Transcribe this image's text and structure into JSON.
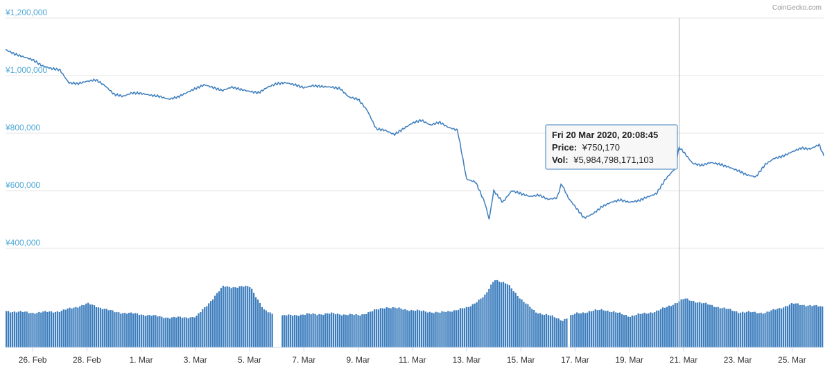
{
  "credit": "CoinGecko.com",
  "chart_data": {
    "type": "line",
    "title": "",
    "xlabel": "",
    "ylabel": "",
    "ylim": [
      400000,
      1200000
    ],
    "y_ticks": [
      "¥1,200,000",
      "¥1,000,000",
      "¥800,000",
      "¥600,000",
      "¥400,000"
    ],
    "y_tick_values": [
      1200000,
      1000000,
      800000,
      600000,
      400000
    ],
    "x_ticks": [
      "26. Feb",
      "28. Feb",
      "1. Mar",
      "3. Mar",
      "5. Mar",
      "7. Mar",
      "9. Mar",
      "11. Mar",
      "13. Mar",
      "15. Mar",
      "17. Mar",
      "19. Mar",
      "21. Mar",
      "23. Mar",
      "25. Mar"
    ],
    "x_range_days": [
      "2020-02-25 00:00",
      "2020-03-26 04:00"
    ],
    "line_color": "#3c7dbd",
    "bar_color": "#3c7dbd",
    "series": [
      {
        "name": "Price",
        "points": [
          [
            "2020-02-25 00:00",
            1090000
          ],
          [
            "2020-02-25 08:00",
            1075000
          ],
          [
            "2020-02-25 16:00",
            1065000
          ],
          [
            "2020-02-26 00:00",
            1055000
          ],
          [
            "2020-02-26 08:00",
            1035000
          ],
          [
            "2020-02-26 16:00",
            1025000
          ],
          [
            "2020-02-27 00:00",
            1020000
          ],
          [
            "2020-02-27 08:00",
            975000
          ],
          [
            "2020-02-27 16:00",
            972000
          ],
          [
            "2020-02-28 00:00",
            980000
          ],
          [
            "2020-02-28 08:00",
            985000
          ],
          [
            "2020-02-28 16:00",
            965000
          ],
          [
            "2020-02-29 00:00",
            935000
          ],
          [
            "2020-02-29 08:00",
            928000
          ],
          [
            "2020-02-29 16:00",
            940000
          ],
          [
            "2020-03-01 00:00",
            938000
          ],
          [
            "2020-03-01 08:00",
            932000
          ],
          [
            "2020-03-01 16:00",
            928000
          ],
          [
            "2020-03-02 00:00",
            918000
          ],
          [
            "2020-03-02 08:00",
            925000
          ],
          [
            "2020-03-02 16:00",
            940000
          ],
          [
            "2020-03-03 00:00",
            955000
          ],
          [
            "2020-03-03 08:00",
            968000
          ],
          [
            "2020-03-03 16:00",
            958000
          ],
          [
            "2020-03-04 00:00",
            948000
          ],
          [
            "2020-03-04 08:00",
            960000
          ],
          [
            "2020-03-04 16:00",
            952000
          ],
          [
            "2020-03-05 00:00",
            945000
          ],
          [
            "2020-03-05 08:00",
            940000
          ],
          [
            "2020-03-05 16:00",
            960000
          ],
          [
            "2020-03-06 00:00",
            972000
          ],
          [
            "2020-03-06 08:00",
            975000
          ],
          [
            "2020-03-06 16:00",
            968000
          ],
          [
            "2020-03-07 00:00",
            958000
          ],
          [
            "2020-03-07 08:00",
            965000
          ],
          [
            "2020-03-07 16:00",
            962000
          ],
          [
            "2020-03-08 00:00",
            960000
          ],
          [
            "2020-03-08 08:00",
            955000
          ],
          [
            "2020-03-08 16:00",
            925000
          ],
          [
            "2020-03-09 00:00",
            918000
          ],
          [
            "2020-03-09 08:00",
            880000
          ],
          [
            "2020-03-09 16:00",
            815000
          ],
          [
            "2020-03-10 00:00",
            810000
          ],
          [
            "2020-03-10 08:00",
            795000
          ],
          [
            "2020-03-10 16:00",
            815000
          ],
          [
            "2020-03-11 00:00",
            835000
          ],
          [
            "2020-03-11 08:00",
            845000
          ],
          [
            "2020-03-11 16:00",
            828000
          ],
          [
            "2020-03-12 00:00",
            838000
          ],
          [
            "2020-03-12 08:00",
            820000
          ],
          [
            "2020-03-12 16:00",
            810000
          ],
          [
            "2020-03-13 00:00",
            640000
          ],
          [
            "2020-03-13 08:00",
            630000
          ],
          [
            "2020-03-13 16:00",
            560000
          ],
          [
            "2020-03-13 20:00",
            500000
          ],
          [
            "2020-03-14 00:00",
            600000
          ],
          [
            "2020-03-14 08:00",
            560000
          ],
          [
            "2020-03-14 16:00",
            600000
          ],
          [
            "2020-03-15 00:00",
            590000
          ],
          [
            "2020-03-15 08:00",
            580000
          ],
          [
            "2020-03-15 16:00",
            585000
          ],
          [
            "2020-03-16 00:00",
            570000
          ],
          [
            "2020-03-16 08:00",
            575000
          ],
          [
            "2020-03-16 12:00",
            625000
          ],
          [
            "2020-03-16 18:00",
            575000
          ],
          [
            "2020-03-17 00:00",
            545000
          ],
          [
            "2020-03-17 08:00",
            505000
          ],
          [
            "2020-03-17 16:00",
            520000
          ],
          [
            "2020-03-18 00:00",
            545000
          ],
          [
            "2020-03-18 08:00",
            560000
          ],
          [
            "2020-03-18 16:00",
            568000
          ],
          [
            "2020-03-19 00:00",
            560000
          ],
          [
            "2020-03-19 08:00",
            565000
          ],
          [
            "2020-03-19 16:00",
            578000
          ],
          [
            "2020-03-20 00:00",
            590000
          ],
          [
            "2020-03-20 08:00",
            640000
          ],
          [
            "2020-03-20 16:00",
            675000
          ],
          [
            "2020-03-20 20:08",
            750170
          ],
          [
            "2020-03-21 00:00",
            735000
          ],
          [
            "2020-03-21 08:00",
            695000
          ],
          [
            "2020-03-21 16:00",
            688000
          ],
          [
            "2020-03-22 00:00",
            698000
          ],
          [
            "2020-03-22 08:00",
            692000
          ],
          [
            "2020-03-22 16:00",
            682000
          ],
          [
            "2020-03-23 00:00",
            670000
          ],
          [
            "2020-03-23 08:00",
            655000
          ],
          [
            "2020-03-23 16:00",
            648000
          ],
          [
            "2020-03-24 00:00",
            690000
          ],
          [
            "2020-03-24 08:00",
            712000
          ],
          [
            "2020-03-24 16:00",
            720000
          ],
          [
            "2020-03-25 00:00",
            735000
          ],
          [
            "2020-03-25 08:00",
            748000
          ],
          [
            "2020-03-25 16:00",
            745000
          ],
          [
            "2020-03-26 00:00",
            760000
          ],
          [
            "2020-03-26 04:00",
            722000
          ]
        ]
      },
      {
        "name": "Vol",
        "relative_levels": [
          [
            "2020-02-25 00:00",
            0.44
          ],
          [
            "2020-02-26 00:00",
            0.42
          ],
          [
            "2020-02-27 00:00",
            0.44
          ],
          [
            "2020-02-28 00:00",
            0.53
          ],
          [
            "2020-02-29 00:00",
            0.43
          ],
          [
            "2020-03-01 00:00",
            0.4
          ],
          [
            "2020-03-02 00:00",
            0.36
          ],
          [
            "2020-03-03 00:00",
            0.37
          ],
          [
            "2020-03-03 12:00",
            0.55
          ],
          [
            "2020-03-04 00:00",
            0.74
          ],
          [
            "2020-03-04 12:00",
            0.73
          ],
          [
            "2020-03-05 00:00",
            0.74
          ],
          [
            "2020-03-05 12:00",
            0.45
          ],
          [
            "2020-03-06 00:00",
            0.38
          ],
          [
            "2020-03-07 00:00",
            0.4
          ],
          [
            "2020-03-08 00:00",
            0.41
          ],
          [
            "2020-03-09 00:00",
            0.39
          ],
          [
            "2020-03-10 00:00",
            0.49
          ],
          [
            "2020-03-11 00:00",
            0.45
          ],
          [
            "2020-03-12 00:00",
            0.42
          ],
          [
            "2020-03-13 00:00",
            0.48
          ],
          [
            "2020-03-13 16:00",
            0.63
          ],
          [
            "2020-03-14 00:00",
            0.83
          ],
          [
            "2020-03-14 12:00",
            0.76
          ],
          [
            "2020-03-15 00:00",
            0.58
          ],
          [
            "2020-03-15 12:00",
            0.43
          ],
          [
            "2020-03-16 00:00",
            0.39
          ],
          [
            "2020-03-16 12:00",
            0.33
          ],
          [
            "2020-03-17 00:00",
            0.41
          ],
          [
            "2020-03-18 00:00",
            0.46
          ],
          [
            "2020-03-19 00:00",
            0.38
          ],
          [
            "2020-03-20 00:00",
            0.44
          ],
          [
            "2020-03-20 20:00",
            0.56
          ],
          [
            "2020-03-21 00:00",
            0.59
          ],
          [
            "2020-03-22 00:00",
            0.51
          ],
          [
            "2020-03-23 00:00",
            0.43
          ],
          [
            "2020-03-24 00:00",
            0.42
          ],
          [
            "2020-03-25 00:00",
            0.53
          ],
          [
            "2020-03-26 04:00",
            0.49
          ]
        ]
      }
    ],
    "tooltip": {
      "date": "Fri 20 Mar 2020, 20:08:45",
      "price_label": "Price:",
      "price_value": "¥750,170",
      "vol_label": "Vol:",
      "vol_value": "¥5,984,798,171,103",
      "at": "2020-03-20 20:08"
    }
  }
}
